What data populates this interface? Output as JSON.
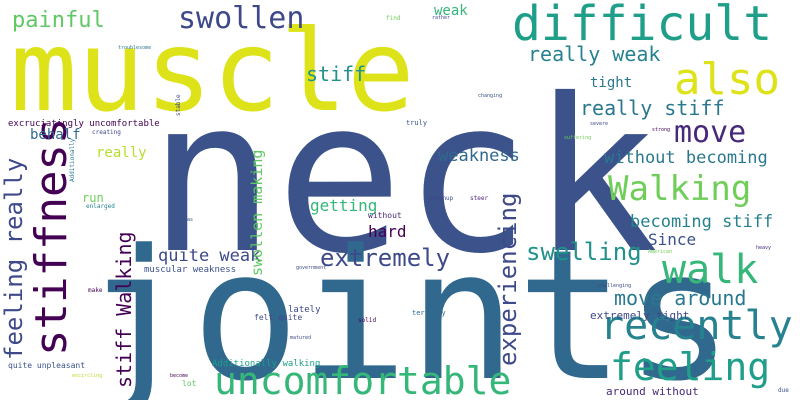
{
  "words": [
    {
      "text": "neck",
      "color": "#3b528b"
    },
    {
      "text": "joints",
      "color": "#31688e"
    },
    {
      "text": "muscle",
      "color": "#dde318"
    },
    {
      "text": "difficult",
      "color": "#1f9e89"
    },
    {
      "text": "stiffness",
      "color": "#440154"
    },
    {
      "text": "also",
      "color": "#dde318"
    },
    {
      "text": "walk",
      "color": "#35b779"
    },
    {
      "text": "recently",
      "color": "#26828e"
    },
    {
      "text": "uncomfortable",
      "color": "#35b779"
    },
    {
      "text": "feeling",
      "color": "#1f9e89"
    },
    {
      "text": "Walking",
      "color": "#6ece58"
    },
    {
      "text": "move",
      "color": "#482878"
    },
    {
      "text": "swollen",
      "color": "#3e4989"
    },
    {
      "text": "extremely",
      "color": "#3e4989"
    },
    {
      "text": "experiencing",
      "color": "#3e4989"
    },
    {
      "text": "swelling",
      "color": "#21918c"
    },
    {
      "text": "feeling really",
      "color": "#3e4989"
    },
    {
      "text": "painful",
      "color": "#5ec962"
    },
    {
      "text": "really weak",
      "color": "#26828e"
    },
    {
      "text": "really stiff",
      "color": "#2a788e"
    },
    {
      "text": "stiff",
      "color": "#21918c"
    },
    {
      "text": "move around",
      "color": "#2a788e"
    },
    {
      "text": "stiff Walking",
      "color": "#440154"
    },
    {
      "text": "without becoming",
      "color": "#2a788e"
    },
    {
      "text": "weakness",
      "color": "#31688e"
    },
    {
      "text": "becoming stiff",
      "color": "#26828e"
    },
    {
      "text": "quite weak",
      "color": "#3e4989"
    },
    {
      "text": "Since",
      "color": "#3b528b"
    },
    {
      "text": "getting",
      "color": "#35b779"
    },
    {
      "text": "hard",
      "color": "#440154"
    },
    {
      "text": "swollen making",
      "color": "#5ec962"
    },
    {
      "text": "tight",
      "color": "#2a788e"
    },
    {
      "text": "behalf",
      "color": "#31688e"
    },
    {
      "text": "really",
      "color": "#b5de2b"
    },
    {
      "text": "weak",
      "color": "#35b779"
    },
    {
      "text": "run",
      "color": "#6ece58"
    },
    {
      "text": "excruciatingly uncomfortable",
      "color": "#440154"
    },
    {
      "text": "extremely tight",
      "color": "#3e4989"
    },
    {
      "text": "around without",
      "color": "#482878"
    },
    {
      "text": "muscular weakness",
      "color": "#3b528b"
    },
    {
      "text": "Additionally walking",
      "color": "#1f9e89"
    },
    {
      "text": "felt quite",
      "color": "#3e4989"
    },
    {
      "text": "lately",
      "color": "#3e4989"
    },
    {
      "text": "quite unpleasant",
      "color": "#3b528b"
    },
    {
      "text": "lot",
      "color": "#5ec962"
    },
    {
      "text": "without",
      "color": "#482878"
    },
    {
      "text": "make",
      "color": "#440154"
    },
    {
      "text": "creating",
      "color": "#3e4989"
    },
    {
      "text": "enlarged",
      "color": "#26828e"
    },
    {
      "text": "terribly",
      "color": "#31688e"
    },
    {
      "text": "solid",
      "color": "#440154"
    },
    {
      "text": "steer",
      "color": "#482878"
    },
    {
      "text": "grownup",
      "color": "#3e4989"
    },
    {
      "text": "find",
      "color": "#6ece58"
    },
    {
      "text": "rather",
      "color": "#3e4989"
    },
    {
      "text": "changing",
      "color": "#3b528b"
    },
    {
      "text": "whereas",
      "color": "#3b528b"
    },
    {
      "text": "truly",
      "color": "#3b528b"
    },
    {
      "text": "challenging",
      "color": "#3e4989"
    },
    {
      "text": "American",
      "color": "#6ece58"
    },
    {
      "text": "heavy",
      "color": "#482878"
    },
    {
      "text": "troublesome",
      "color": "#2a788e"
    },
    {
      "text": "Additionally",
      "color": "#2a788e"
    },
    {
      "text": "become",
      "color": "#440154"
    },
    {
      "text": "suffering",
      "color": "#6ece58"
    },
    {
      "text": "severe",
      "color": "#3e4989"
    },
    {
      "text": "strong",
      "color": "#440154"
    },
    {
      "text": "encircling",
      "color": "#b5de2b"
    },
    {
      "text": "due",
      "color": "#3b528b"
    },
    {
      "text": "stable",
      "color": "#3e4989"
    },
    {
      "text": "government",
      "color": "#3e4989"
    },
    {
      "text": "matured",
      "color": "#3e4989"
    }
  ]
}
